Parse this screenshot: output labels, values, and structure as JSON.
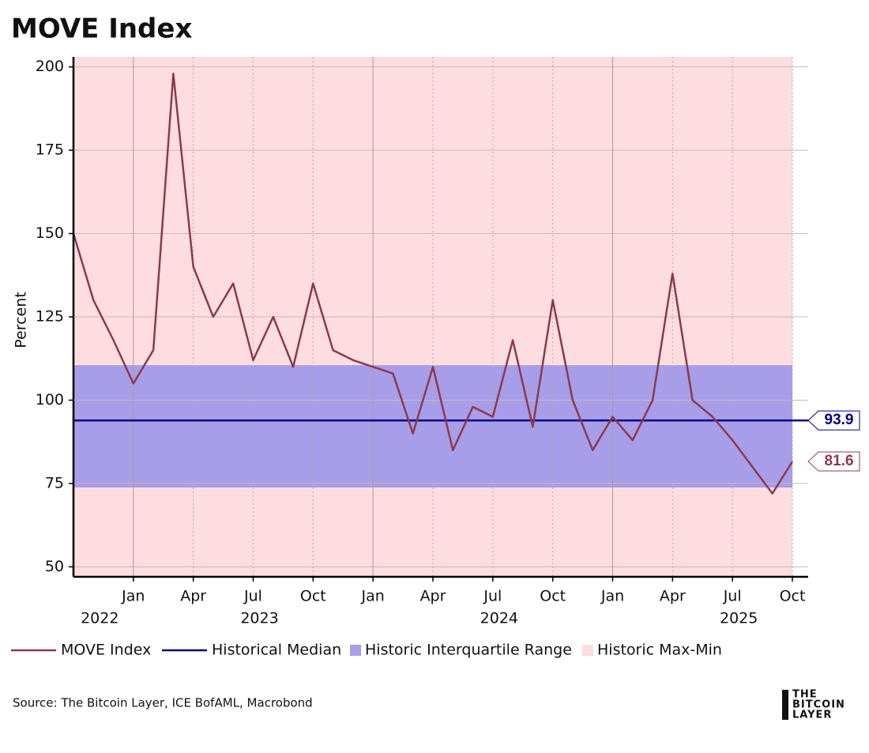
{
  "chart_data": {
    "type": "line",
    "title": "MOVE Index",
    "y_label": "Percent",
    "source": "Source: The Bitcoin Layer, ICE BofAML, Macrobond",
    "logo": [
      "THE",
      "BITCOIN",
      "LAYER"
    ],
    "x": [
      "2022-10",
      "2022-11",
      "2022-12",
      "2023-01",
      "2023-02",
      "2023-03",
      "2023-04",
      "2023-05",
      "2023-06",
      "2023-07",
      "2023-08",
      "2023-09",
      "2023-10",
      "2023-11",
      "2023-12",
      "2024-01",
      "2024-02",
      "2024-03",
      "2024-04",
      "2024-05",
      "2024-06",
      "2024-07",
      "2024-08",
      "2024-09",
      "2024-10",
      "2024-11",
      "2024-12",
      "2025-01",
      "2025-02",
      "2025-03",
      "2025-04",
      "2025-05",
      "2025-06",
      "2025-07",
      "2025-08",
      "2025-09",
      "2025-10"
    ],
    "xlim": [
      "2022-10",
      "2025-10"
    ],
    "xticks": [
      {
        "value": "2023-01",
        "label": "Jan"
      },
      {
        "value": "2023-04",
        "label": "Apr"
      },
      {
        "value": "2023-07",
        "label": "Jul"
      },
      {
        "value": "2023-10",
        "label": "Oct"
      },
      {
        "value": "2024-01",
        "label": "Jan"
      },
      {
        "value": "2024-04",
        "label": "Apr"
      },
      {
        "value": "2024-07",
        "label": "Jul"
      },
      {
        "value": "2024-10",
        "label": "Oct"
      },
      {
        "value": "2025-01",
        "label": "Jan"
      },
      {
        "value": "2025-04",
        "label": "Apr"
      },
      {
        "value": "2025-07",
        "label": "Jul"
      },
      {
        "value": "2025-10",
        "label": "Oct"
      }
    ],
    "x_group_labels": [
      {
        "value": "2022-11",
        "label": "2022"
      },
      {
        "value": "2023-07",
        "label": "2023"
      },
      {
        "value": "2024-07",
        "label": "2024"
      },
      {
        "value": "2025-07",
        "label": "2025"
      }
    ],
    "ylim": [
      47,
      203
    ],
    "yticks": [
      50,
      75,
      100,
      125,
      150,
      175,
      200
    ],
    "grid": true,
    "series": [
      {
        "name": "MOVE Index",
        "color": "#8b3a4f",
        "values": [
          150,
          130,
          118,
          105,
          115,
          198,
          140,
          125,
          135,
          112,
          125,
          110,
          135,
          115,
          112,
          110,
          108,
          90,
          110,
          85,
          98,
          95,
          118,
          92,
          130,
          100,
          85,
          95,
          88,
          100,
          138,
          100,
          95,
          88,
          80,
          72,
          81.6
        ]
      },
      {
        "name": "Historical Median",
        "color": "#000080",
        "value": 93.9
      },
      {
        "name": "Historic Interquartile Range",
        "color": "#a89de8",
        "range": [
          73.8,
          110.5
        ]
      },
      {
        "name": "Historic Max-Min",
        "color": "#fddde0"
      }
    ]
  }
}
